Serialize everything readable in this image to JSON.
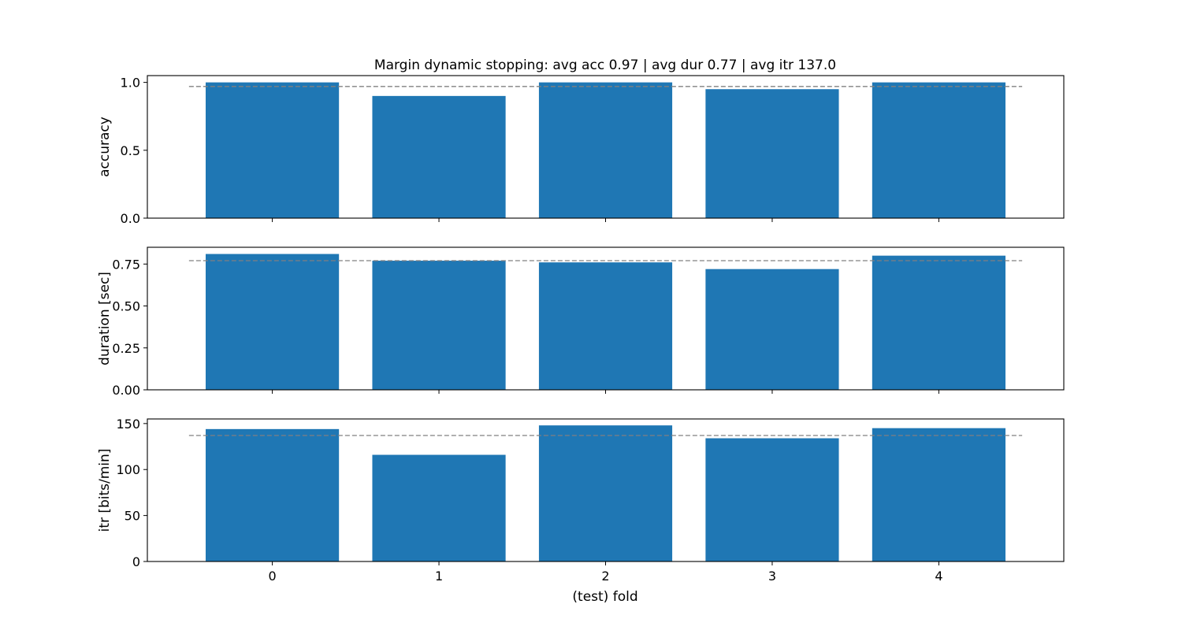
{
  "chart_data": {
    "type": "bar",
    "title": "Margin dynamic stopping: avg acc 0.97 | avg dur 0.77 | avg itr 137.0",
    "xlabel": "(test) fold",
    "categories": [
      "0",
      "1",
      "2",
      "3",
      "4"
    ],
    "bar_color": "#1f77b4",
    "mean_line_color": "#808080",
    "grid": false,
    "shared_x": true,
    "subplots": [
      {
        "ylabel": "accuracy",
        "ylim": [
          0,
          1.05
        ],
        "yticks": [
          0.0,
          0.5,
          1.0
        ],
        "ytick_labels": [
          "0.0",
          "0.5",
          "1.0"
        ],
        "values": [
          1.0,
          0.9,
          1.0,
          0.95,
          1.0
        ],
        "mean": 0.97
      },
      {
        "ylabel": "duration [sec]",
        "ylim": [
          0,
          0.85
        ],
        "yticks": [
          0.0,
          0.25,
          0.5,
          0.75
        ],
        "ytick_labels": [
          "0.00",
          "0.25",
          "0.50",
          "0.75"
        ],
        "values": [
          0.81,
          0.77,
          0.76,
          0.72,
          0.8
        ],
        "mean": 0.77
      },
      {
        "ylabel": "itr [bits/min]",
        "ylim": [
          0,
          155
        ],
        "yticks": [
          0,
          50,
          100,
          150
        ],
        "ytick_labels": [
          "0",
          "50",
          "100",
          "150"
        ],
        "values": [
          144,
          116,
          148,
          134,
          145
        ],
        "mean": 137.0
      }
    ]
  }
}
